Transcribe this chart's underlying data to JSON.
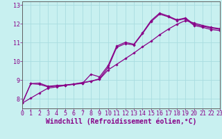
{
  "xlabel": "Windchill (Refroidissement éolien,°C)",
  "background_color": "#c8f0f0",
  "grid_color": "#a8dce0",
  "line_color": "#880088",
  "xlim": [
    0,
    23
  ],
  "ylim": [
    7.5,
    13.2
  ],
  "xticks": [
    0,
    1,
    2,
    3,
    4,
    5,
    6,
    7,
    8,
    9,
    10,
    11,
    12,
    13,
    14,
    15,
    16,
    17,
    18,
    19,
    20,
    21,
    22,
    23
  ],
  "yticks": [
    8,
    9,
    10,
    11,
    12,
    13
  ],
  "series1_x": [
    0,
    1,
    2,
    3,
    4,
    5,
    6,
    7,
    8,
    9,
    10,
    11,
    12,
    13,
    14,
    15,
    16,
    17,
    18,
    19,
    20,
    21,
    22,
    23
  ],
  "series1_y": [
    7.78,
    8.82,
    8.85,
    8.68,
    8.72,
    8.73,
    8.78,
    8.83,
    9.32,
    9.18,
    9.78,
    10.82,
    11.02,
    10.92,
    11.52,
    12.18,
    12.58,
    12.42,
    12.22,
    12.32,
    11.98,
    11.88,
    11.78,
    11.72
  ],
  "series2_x": [
    0,
    1,
    2,
    3,
    4,
    5,
    6,
    7,
    8,
    9,
    10,
    11,
    12,
    13,
    14,
    15,
    16,
    17,
    18,
    19,
    20,
    21,
    22,
    23
  ],
  "series2_y": [
    7.78,
    8.82,
    8.78,
    8.65,
    8.7,
    8.75,
    8.8,
    8.85,
    8.95,
    9.08,
    9.68,
    10.75,
    10.95,
    10.88,
    11.48,
    12.12,
    12.52,
    12.38,
    12.18,
    12.28,
    11.92,
    11.82,
    11.7,
    11.65
  ],
  "series3_x": [
    0,
    1,
    2,
    3,
    4,
    5,
    6,
    7,
    8,
    9,
    10,
    11,
    12,
    13,
    14,
    15,
    16,
    17,
    18,
    19,
    20,
    21,
    22,
    23
  ],
  "series3_y": [
    7.78,
    8.05,
    8.32,
    8.58,
    8.65,
    8.72,
    8.8,
    8.88,
    8.95,
    9.05,
    9.55,
    9.85,
    10.15,
    10.45,
    10.78,
    11.08,
    11.42,
    11.72,
    11.98,
    12.18,
    12.05,
    11.92,
    11.82,
    11.75
  ],
  "tick_fontsize": 6.0,
  "xlabel_fontsize": 7.0
}
